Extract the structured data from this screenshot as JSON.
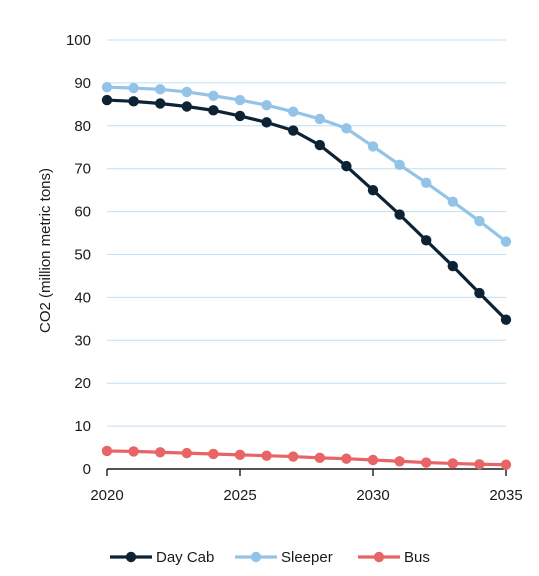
{
  "chart_data": {
    "type": "line",
    "title": "",
    "xlabel": "",
    "ylabel": "CO2 (million metric tons)",
    "xlim": [
      2020,
      2035
    ],
    "ylim": [
      0,
      100
    ],
    "grid": true,
    "legend_position": "bottom",
    "x_ticks": [
      2020,
      2025,
      2030,
      2035
    ],
    "y_ticks": [
      0,
      10,
      20,
      30,
      40,
      50,
      60,
      70,
      80,
      90,
      100
    ],
    "x": [
      2020,
      2021,
      2022,
      2023,
      2024,
      2025,
      2026,
      2027,
      2028,
      2029,
      2030,
      2031,
      2032,
      2033,
      2034,
      2035
    ],
    "series": [
      {
        "name": "Day Cab",
        "color": "#0d2233",
        "values": [
          86,
          85.7,
          85.2,
          84.5,
          83.6,
          82.3,
          80.8,
          78.9,
          75.5,
          70.6,
          65,
          59.3,
          53.3,
          47.3,
          41,
          34.8
        ]
      },
      {
        "name": "Sleeper",
        "color": "#93c4e8",
        "values": [
          89,
          88.8,
          88.5,
          87.9,
          87,
          86,
          84.8,
          83.3,
          81.6,
          79.4,
          75.2,
          70.9,
          66.7,
          62.3,
          57.8,
          53
        ]
      },
      {
        "name": "Bus",
        "color": "#e86466",
        "values": [
          4.2,
          4.1,
          3.9,
          3.7,
          3.5,
          3.3,
          3.1,
          2.9,
          2.6,
          2.4,
          2.1,
          1.8,
          1.5,
          1.3,
          1.1,
          1
        ]
      }
    ]
  }
}
